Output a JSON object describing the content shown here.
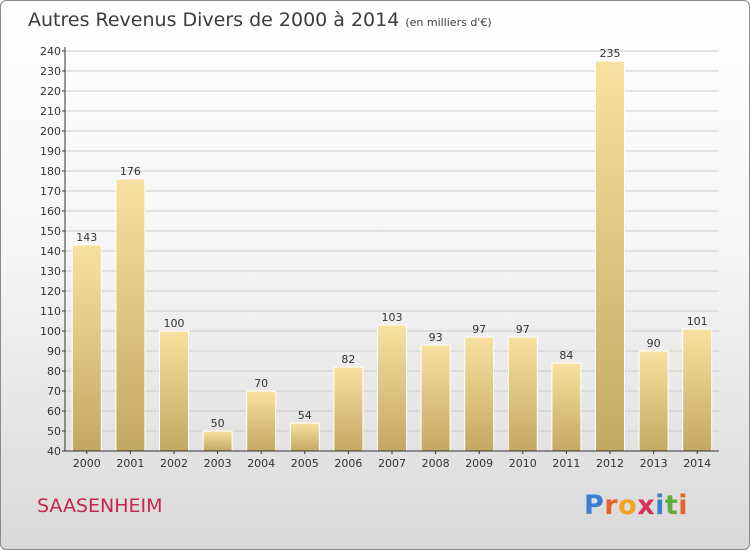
{
  "title": "Autres Revenus Divers de 2000 à 2014",
  "unit_note": "(en milliers d'€)",
  "commune": "SAASENHEIM",
  "logo": {
    "text": "Proxiti",
    "letters": [
      "P",
      "r",
      "o",
      "x",
      "i",
      "t",
      "i"
    ],
    "colors": [
      "#3b7fd1",
      "#e8622d",
      "#f2a51d",
      "#d9325c",
      "#3b7fd1",
      "#5fae3c",
      "#e8622d"
    ]
  },
  "colors": {
    "bar_light": "#f8e1a0",
    "bar_dark": "#c4a862",
    "bar_edge": "#ffffff",
    "axis": "#333333",
    "grid": "#cccccc",
    "text": "#333333",
    "commune": "#c8264d"
  },
  "chart_data": {
    "type": "bar",
    "title": "Autres Revenus Divers de 2000 à 2014",
    "categories": [
      "2000",
      "2001",
      "2002",
      "2003",
      "2004",
      "2005",
      "2006",
      "2007",
      "2008",
      "2009",
      "2010",
      "2011",
      "2012",
      "2013",
      "2014"
    ],
    "values": [
      143,
      176,
      100,
      50,
      70,
      54,
      82,
      103,
      93,
      97,
      97,
      84,
      235,
      90,
      101
    ],
    "data_labels": [
      "143",
      "176",
      "100",
      "50",
      "70",
      "54",
      "82",
      "103",
      "93",
      "97",
      "97",
      "84",
      "235",
      "90",
      "101"
    ],
    "ylim": [
      40,
      240
    ],
    "yticks": [
      40,
      50,
      60,
      70,
      80,
      90,
      100,
      110,
      120,
      130,
      140,
      150,
      160,
      170,
      180,
      190,
      200,
      210,
      220,
      230,
      240
    ],
    "grid": true,
    "xlabel": "",
    "ylabel": ""
  }
}
